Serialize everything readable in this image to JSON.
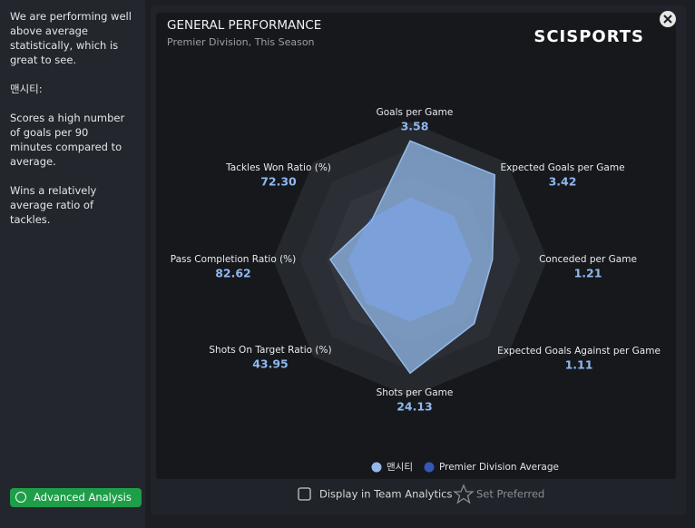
{
  "sidebar": {
    "paragraphs": [
      "We are performing well above average statistically, which is great to see.",
      "맨시티:",
      "Scores a high number of goals per 90 minutes compared to average.",
      "Wins a relatively average ratio of tackles."
    ]
  },
  "footer": {
    "advanced_analysis": "Advanced Analysis",
    "display_in_team_analytics": "Display in Team Analytics",
    "set_preferred": "Set Preferred"
  },
  "chart_data": {
    "type": "radar",
    "title": "GENERAL PERFORMANCE",
    "subtitle": "Premier Division, This Season",
    "logo": "SCISPORTS",
    "axes": [
      {
        "label": "Goals per Game",
        "lim": [
          0,
          3.7
        ]
      },
      {
        "label": "Expected Goals per Game",
        "lim": [
          0,
          3.5
        ]
      },
      {
        "label": "Conceded per Game",
        "lim": [
          0,
          1.8
        ]
      },
      {
        "label": "Expected Goals Against per Game",
        "lim": [
          0,
          1.5
        ]
      },
      {
        "label": "Shots per Game",
        "lim": [
          0,
          26
        ]
      },
      {
        "label": "Shots On Target Ratio (%)",
        "lim": [
          0,
          80
        ]
      },
      {
        "label": "Pass Completion Ratio (%)",
        "lim": [
          50,
          100
        ]
      },
      {
        "label": "Tackles Won Ratio (%)",
        "lim": [
          50,
          100
        ]
      }
    ],
    "series": [
      {
        "name": "맨시티",
        "color": "#93b9ea",
        "values": [
          3.58,
          3.42,
          1.21,
          1.11,
          24.13,
          43.95,
          82.62,
          72.3
        ],
        "value_labels": [
          "3.58",
          "3.42",
          "1.21",
          "1.11",
          "24.13",
          "43.95",
          "82.62",
          "72.30"
        ]
      },
      {
        "name": "Premier Division Average",
        "color": "#3557b8",
        "values": [
          1.85,
          1.75,
          0.9,
          0.75,
          13,
          40,
          75,
          73
        ]
      }
    ],
    "legend": "bottom"
  }
}
